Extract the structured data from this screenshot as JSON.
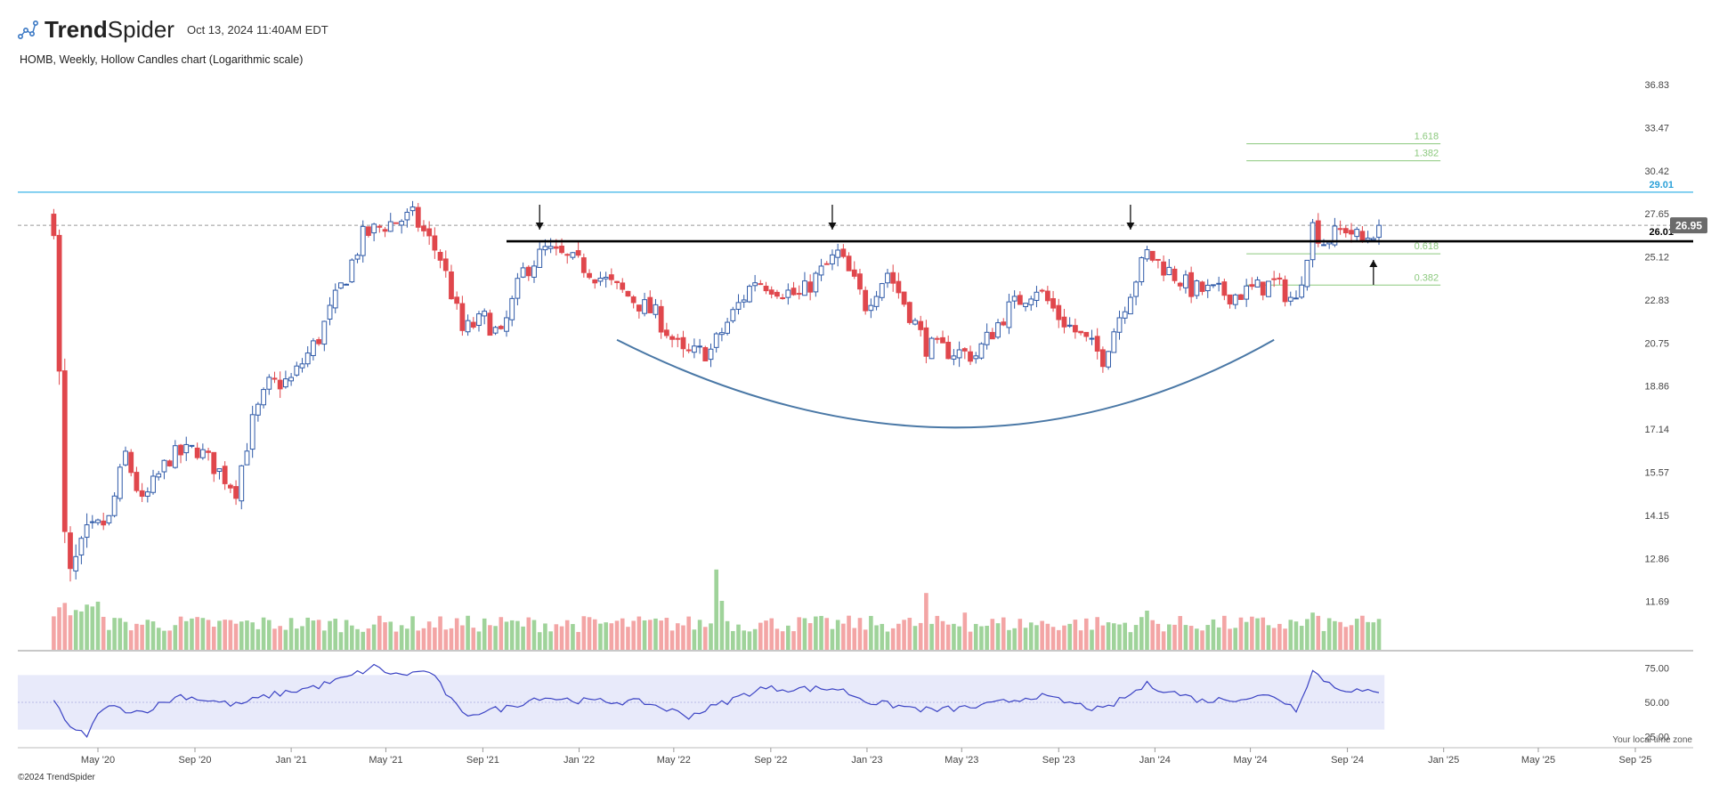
{
  "header": {
    "logo_trend": "Trend",
    "logo_spider": "Spider",
    "timestamp": "Oct 13, 2024 11:40AM EDT",
    "subtitle": "HOMB, Weekly, Hollow Candles chart (Logarithmic scale)"
  },
  "footer": {
    "copyright": "©2024 TrendSpider",
    "timezone": "Your local time zone"
  },
  "colors": {
    "up": "#2f5aa8",
    "down": "#e0474c",
    "vol_up": "#9fd39a",
    "vol_down": "#f3a5a5",
    "resistance": "#5bc0eb",
    "fib": "#8cc97e",
    "arc": "#4a78a6",
    "rsi_line": "#3b43c4",
    "rsi_band": "#e8eafa"
  },
  "chart_data": [
    {
      "type": "candlestick",
      "title": "HOMB, Weekly, Hollow Candles chart (Logarithmic scale)",
      "scale": "log",
      "ylim": [
        10.5,
        37.5
      ],
      "y_ticks": [
        "36.83",
        "33.47",
        "30.42",
        "27.65",
        "25.12",
        "22.83",
        "20.75",
        "18.86",
        "17.14",
        "15.57",
        "14.15",
        "12.86",
        "11.69"
      ],
      "x_ticks": [
        "May '20",
        "Sep '20",
        "Jan '21",
        "May '21",
        "Sep '21",
        "Jan '22",
        "May '22",
        "Sep '22",
        "Jan '23",
        "May '23",
        "Sep '23",
        "Jan '24",
        "May '24",
        "Sep '24",
        "Jan '25",
        "May '25",
        "Sep '25"
      ],
      "last_price": "26.95",
      "resistance": {
        "value": 29.01,
        "label": "29.01"
      },
      "support_line": {
        "value": 26.01,
        "label": "26.01",
        "from": "Oct '21"
      },
      "fib_levels": [
        {
          "label": "1.618",
          "value": 32.3
        },
        {
          "label": "1.382",
          "value": 31.1
        },
        {
          "label": "0.618",
          "value": 25.3
        },
        {
          "label": "0.382",
          "value": 23.6
        }
      ],
      "annotations": [
        "cup arc",
        "down arrows at Nov '21, Nov '22, Dec '23",
        "up arrow at Oct '24"
      ],
      "anchors": [
        [
          "2020-03-13",
          19.3
        ],
        [
          "2020-03-20",
          13.5
        ],
        [
          "2020-03-27",
          12.4
        ],
        [
          "2020-04-17",
          13.6
        ],
        [
          "2020-05-15",
          14.0
        ],
        [
          "2020-06-05",
          16.2
        ],
        [
          "2020-06-26",
          14.5
        ],
        [
          "2020-07-31",
          16.1
        ],
        [
          "2020-09-04",
          16.4
        ],
        [
          "2020-10-02",
          15.6
        ],
        [
          "2020-10-23",
          15.0
        ],
        [
          "2020-11-13",
          17.4
        ],
        [
          "2020-12-04",
          18.9
        ],
        [
          "2021-01-01",
          19.1
        ],
        [
          "2021-02-05",
          21.0
        ],
        [
          "2021-03-12",
          24.1
        ],
        [
          "2021-04-02",
          26.3
        ],
        [
          "2021-04-30",
          27.0
        ],
        [
          "2021-06-04",
          27.5
        ],
        [
          "2021-07-09",
          25.1
        ],
        [
          "2021-08-06",
          21.3
        ],
        [
          "2021-09-03",
          21.9
        ],
        [
          "2021-09-24",
          21.0
        ],
        [
          "2021-10-22",
          24.3
        ],
        [
          "2021-11-19",
          25.5
        ],
        [
          "2022-01-07",
          24.6
        ],
        [
          "2022-02-11",
          23.6
        ],
        [
          "2022-04-08",
          22.1
        ],
        [
          "2022-05-13",
          20.2
        ],
        [
          "2022-06-17",
          20.4
        ],
        [
          "2022-08-12",
          23.9
        ],
        [
          "2022-10-07",
          23.0
        ],
        [
          "2022-11-25",
          25.3
        ],
        [
          "2022-12-30",
          22.6
        ],
        [
          "2023-01-27",
          24.3
        ],
        [
          "2023-03-17",
          20.6
        ],
        [
          "2023-04-14",
          20.4
        ],
        [
          "2023-05-19",
          20.2
        ],
        [
          "2023-06-30",
          22.4
        ],
        [
          "2023-08-04",
          23.5
        ],
        [
          "2023-09-01",
          22.0
        ],
        [
          "2023-10-27",
          20.1
        ],
        [
          "2023-12-22",
          25.3
        ],
        [
          "2024-02-16",
          23.4
        ],
        [
          "2024-04-12",
          23.1
        ],
        [
          "2024-05-31",
          23.7
        ],
        [
          "2024-06-28",
          22.7
        ],
        [
          "2024-07-19",
          26.9
        ],
        [
          "2024-08-02",
          26.0
        ],
        [
          "2024-08-30",
          26.8
        ],
        [
          "2024-09-20",
          26.0
        ],
        [
          "2024-10-11",
          26.95
        ]
      ]
    },
    {
      "type": "line",
      "title": "RSI",
      "ylim": [
        18,
        82
      ],
      "y_ticks": [
        "75.00",
        "50.00",
        "25.00"
      ],
      "band": [
        30,
        70
      ],
      "anchors": [
        [
          "2020-03-06",
          53
        ],
        [
          "2020-03-27",
          30
        ],
        [
          "2020-04-17",
          26
        ],
        [
          "2020-05-08",
          47
        ],
        [
          "2020-06-26",
          43
        ],
        [
          "2020-08-14",
          55
        ],
        [
          "2020-10-23",
          48
        ],
        [
          "2020-12-04",
          55
        ],
        [
          "2021-02-05",
          62
        ],
        [
          "2021-03-12",
          68
        ],
        [
          "2021-04-16",
          76
        ],
        [
          "2021-05-14",
          70
        ],
        [
          "2021-06-25",
          73
        ],
        [
          "2021-08-06",
          41
        ],
        [
          "2021-10-01",
          46
        ],
        [
          "2021-11-12",
          54
        ],
        [
          "2022-01-07",
          51
        ],
        [
          "2022-03-25",
          50
        ],
        [
          "2022-05-20",
          40
        ],
        [
          "2022-08-19",
          60
        ],
        [
          "2022-11-25",
          60
        ],
        [
          "2023-01-06",
          50
        ],
        [
          "2023-03-24",
          44
        ],
        [
          "2023-05-26",
          47
        ],
        [
          "2023-08-04",
          55
        ],
        [
          "2023-10-27",
          44
        ],
        [
          "2023-12-22",
          63
        ],
        [
          "2024-03-01",
          51
        ],
        [
          "2024-05-31",
          55
        ],
        [
          "2024-06-28",
          45
        ],
        [
          "2024-07-19",
          73
        ],
        [
          "2024-08-16",
          61
        ],
        [
          "2024-09-20",
          58
        ],
        [
          "2024-10-11",
          56
        ]
      ]
    }
  ]
}
